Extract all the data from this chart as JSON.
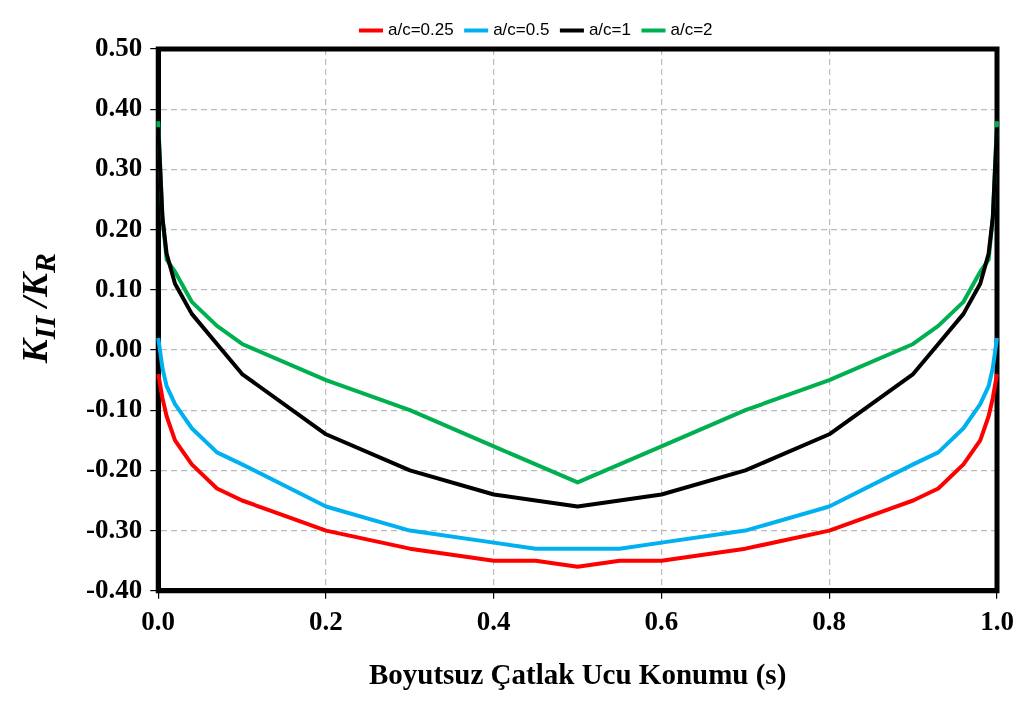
{
  "chart_data": {
    "type": "line",
    "xlabel": "Boyutsuz Çatlak Ucu Konumu (s)",
    "ylabel": "K$_{II}$ /K$_{R}$",
    "x": [
      0,
      0.005,
      0.01,
      0.02,
      0.04,
      0.07,
      0.1,
      0.2,
      0.3,
      0.4,
      0.45,
      0.5,
      0.55,
      0.6,
      0.7,
      0.8,
      0.9,
      0.93,
      0.96,
      0.98,
      0.99,
      0.995,
      1.0
    ],
    "series": [
      {
        "name": "a/c=0.25",
        "color": "#ff0000",
        "values": [
          -0.04,
          -0.08,
          -0.11,
          -0.15,
          -0.19,
          -0.23,
          -0.25,
          -0.3,
          -0.33,
          -0.35,
          -0.35,
          -0.36,
          -0.35,
          -0.35,
          -0.33,
          -0.3,
          -0.25,
          -0.23,
          -0.19,
          -0.15,
          -0.11,
          -0.08,
          -0.04
        ]
      },
      {
        "name": "a/c=0.5",
        "color": "#00b0f0",
        "values": [
          0.02,
          -0.03,
          -0.06,
          -0.09,
          -0.13,
          -0.17,
          -0.19,
          -0.26,
          -0.3,
          -0.32,
          -0.33,
          -0.33,
          -0.33,
          -0.32,
          -0.3,
          -0.26,
          -0.19,
          -0.17,
          -0.13,
          -0.09,
          -0.06,
          -0.03,
          0.02
        ]
      },
      {
        "name": "a/c=1",
        "color": "#000000",
        "values": [
          0.37,
          0.22,
          0.16,
          0.11,
          0.06,
          0.01,
          -0.04,
          -0.14,
          -0.2,
          -0.24,
          -0.25,
          -0.26,
          -0.25,
          -0.24,
          -0.2,
          -0.14,
          -0.04,
          0.01,
          0.06,
          0.11,
          0.16,
          0.22,
          0.37
        ]
      },
      {
        "name": "a/c=2",
        "color": "#00b050",
        "values": [
          0.38,
          0.22,
          0.15,
          0.13,
          0.08,
          0.04,
          0.01,
          -0.05,
          -0.1,
          -0.16,
          -0.19,
          -0.22,
          -0.19,
          -0.16,
          -0.1,
          -0.05,
          0.01,
          0.04,
          0.08,
          0.13,
          0.15,
          0.22,
          0.38
        ]
      }
    ],
    "xlim": [
      0,
      1
    ],
    "xticks": [
      {
        "value": 0,
        "label": "0.0"
      },
      {
        "value": 0.2,
        "label": "0.2"
      },
      {
        "value": 0.4,
        "label": "0.4"
      },
      {
        "value": 0.6,
        "label": "0.6"
      },
      {
        "value": 0.8,
        "label": "0.8"
      },
      {
        "value": 1,
        "label": "1.0"
      }
    ],
    "ylim": [
      -0.4,
      0.5
    ],
    "yticks": [
      {
        "value": -0.4,
        "label": "-0.40"
      },
      {
        "value": -0.3,
        "label": "-0.30"
      },
      {
        "value": -0.2,
        "label": "-0.20"
      },
      {
        "value": -0.1,
        "label": "-0.10"
      },
      {
        "value": 0,
        "label": "0.00"
      },
      {
        "value": 0.1,
        "label": "0.10"
      },
      {
        "value": 0.2,
        "label": "0.20"
      },
      {
        "value": 0.3,
        "label": "0.30"
      },
      {
        "value": 0.4,
        "label": "0.40"
      },
      {
        "value": 0.5,
        "label": "0.50"
      }
    ],
    "grid": true,
    "legend": "top",
    "marker": "none",
    "line_style": "solid"
  }
}
